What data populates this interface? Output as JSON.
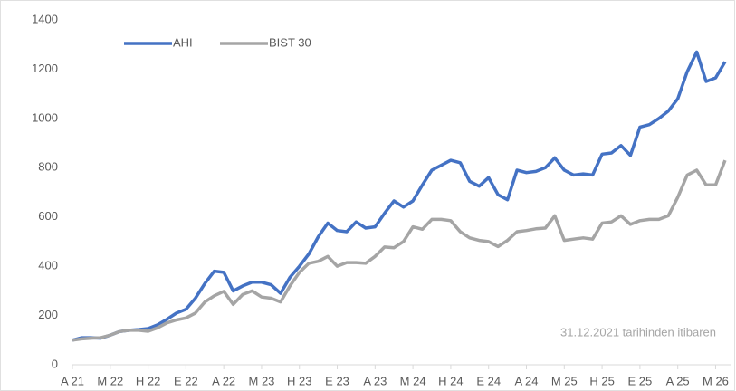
{
  "chart_data": {
    "type": "line",
    "x": [
      0,
      0.25,
      0.5,
      0.75,
      1,
      1.25,
      1.5,
      1.75,
      2,
      2.25,
      2.5,
      2.75,
      3,
      3.25,
      3.5,
      3.75,
      4,
      4.25,
      4.5,
      4.75,
      5,
      5.25,
      5.5,
      5.75,
      6,
      6.25,
      6.5,
      6.75,
      7,
      7.25,
      7.5,
      7.75,
      8,
      8.25,
      8.5,
      8.75,
      9,
      9.25,
      9.5,
      9.75,
      10,
      10.25,
      10.5,
      10.75,
      11,
      11.25,
      11.5,
      11.75,
      12,
      12.25,
      12.5,
      12.75,
      13,
      13.25,
      13.5,
      13.75,
      14,
      14.25,
      14.5,
      14.75,
      15,
      15.25,
      15.5,
      15.75,
      16,
      16.25,
      16.5,
      16.75,
      17,
      17.25
    ],
    "series": [
      {
        "name": "AHI",
        "color": "#4472c4",
        "values": [
          100,
          110,
          110,
          108,
          120,
          135,
          140,
          143,
          147,
          162,
          185,
          210,
          225,
          270,
          330,
          380,
          375,
          300,
          320,
          335,
          335,
          325,
          290,
          355,
          400,
          450,
          520,
          575,
          545,
          540,
          580,
          555,
          560,
          615,
          665,
          640,
          665,
          730,
          790,
          810,
          830,
          820,
          745,
          725,
          760,
          690,
          670,
          790,
          780,
          785,
          800,
          840,
          790,
          770,
          775,
          770,
          855,
          860,
          890,
          850,
          965,
          975,
          1000,
          1030,
          1080,
          1190,
          1270,
          1150,
          1165,
          1230
        ]
      },
      {
        "name": "BIST 30",
        "color": "#a5a5a5",
        "values": [
          100,
          105,
          108,
          110,
          120,
          135,
          140,
          140,
          136,
          150,
          170,
          182,
          190,
          210,
          255,
          280,
          298,
          245,
          285,
          300,
          275,
          270,
          255,
          320,
          375,
          412,
          420,
          440,
          400,
          415,
          415,
          412,
          440,
          478,
          475,
          500,
          560,
          550,
          590,
          590,
          585,
          540,
          515,
          505,
          500,
          480,
          505,
          540,
          545,
          552,
          555,
          605,
          505,
          510,
          515,
          510,
          575,
          580,
          605,
          570,
          585,
          590,
          590,
          605,
          680,
          770,
          790,
          730,
          730,
          830
        ]
      }
    ],
    "xlim": [
      0,
      17.3
    ],
    "xticks": [
      {
        "value": 0,
        "label": "A 21"
      },
      {
        "value": 1,
        "label": "M 22"
      },
      {
        "value": 2,
        "label": "H 22"
      },
      {
        "value": 3,
        "label": "E 22"
      },
      {
        "value": 4,
        "label": "A 22"
      },
      {
        "value": 5,
        "label": "M 23"
      },
      {
        "value": 6,
        "label": "H 23"
      },
      {
        "value": 7,
        "label": "E 23"
      },
      {
        "value": 8,
        "label": "A 23"
      },
      {
        "value": 9,
        "label": "M 24"
      },
      {
        "value": 10,
        "label": "H 24"
      },
      {
        "value": 11,
        "label": "E 24"
      },
      {
        "value": 12,
        "label": "A 24"
      },
      {
        "value": 13,
        "label": "M 25"
      },
      {
        "value": 14,
        "label": "H 25"
      },
      {
        "value": 15,
        "label": "E 25"
      },
      {
        "value": 16,
        "label": "A 25"
      },
      {
        "value": 17,
        "label": "M 26"
      }
    ],
    "ylim": [
      0,
      1400
    ],
    "yticks": [
      0,
      200,
      400,
      600,
      800,
      1000,
      1200,
      1400
    ],
    "annotation": "31.12.2021 tarihinden itibaren",
    "legend": "top-left"
  }
}
